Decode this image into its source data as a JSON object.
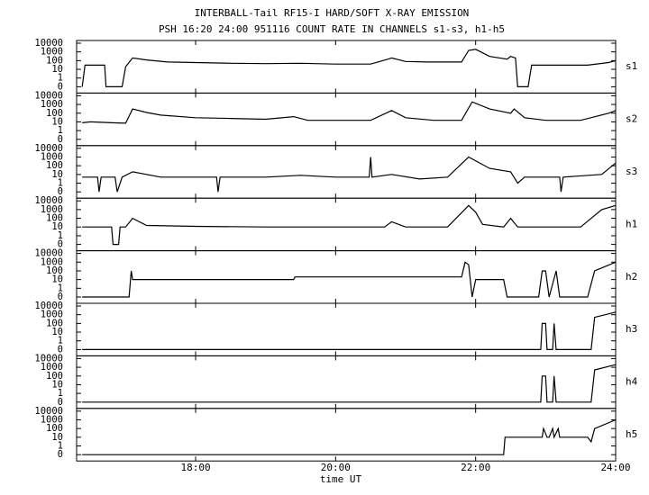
{
  "chart_data": [
    {
      "type": "line",
      "title": "INTERBALL-Tail RF15-I HARD/SOFT X-RAY EMISSION",
      "subtitle": "PSH 16:20 24:00 951116  COUNT RATE IN CHANNELS s1-s3, h1-h5",
      "label": "s1",
      "color": "#000000",
      "yscale": "symlog",
      "xlim": [
        16.3,
        24
      ],
      "ylim": [
        0,
        10000
      ],
      "yticks": [
        0,
        1,
        10,
        100,
        1000,
        10000
      ],
      "x": [
        16.38,
        16.42,
        16.7,
        16.72,
        16.95,
        17.0,
        17.1,
        17.3,
        17.6,
        18.0,
        18.5,
        19.0,
        19.5,
        20.0,
        20.5,
        20.75,
        20.8,
        21.0,
        21.3,
        21.8,
        21.9,
        22.0,
        22.2,
        22.45,
        22.5,
        22.57,
        22.6,
        22.75,
        22.8,
        23.2,
        23.6,
        23.9,
        24.0
      ],
      "values": [
        0,
        30,
        30,
        0,
        0,
        20,
        200,
        120,
        70,
        60,
        50,
        45,
        50,
        40,
        40,
        150,
        200,
        80,
        70,
        70,
        1500,
        2000,
        300,
        150,
        300,
        200,
        0,
        0,
        30,
        30,
        30,
        60,
        100
      ]
    },
    {
      "type": "line",
      "label": "s2",
      "color": "#000000",
      "yscale": "symlog",
      "xlim": [
        16.3,
        24
      ],
      "ylim": [
        0,
        10000
      ],
      "yticks": [
        0,
        1,
        10,
        100,
        1000,
        10000
      ],
      "x": [
        16.38,
        16.5,
        16.8,
        17.0,
        17.1,
        17.3,
        17.5,
        18.0,
        18.5,
        19.0,
        19.4,
        19.6,
        20.0,
        20.5,
        20.8,
        21.0,
        21.4,
        21.8,
        21.95,
        22.2,
        22.5,
        22.55,
        22.7,
        23.0,
        23.5,
        23.9,
        24.0
      ],
      "values": [
        8,
        10,
        8,
        7,
        300,
        120,
        60,
        30,
        25,
        20,
        40,
        15,
        15,
        15,
        200,
        30,
        15,
        15,
        2000,
        300,
        100,
        300,
        30,
        15,
        15,
        100,
        200
      ]
    },
    {
      "type": "line",
      "label": "s3",
      "color": "#000000",
      "yscale": "symlog",
      "xlim": [
        16.3,
        24
      ],
      "ylim": [
        0,
        10000
      ],
      "yticks": [
        0,
        1,
        10,
        100,
        1000,
        10000
      ],
      "x": [
        16.38,
        16.6,
        16.62,
        16.65,
        16.85,
        16.88,
        16.95,
        17.1,
        17.5,
        18.0,
        18.3,
        18.32,
        18.35,
        19.0,
        19.5,
        20.0,
        20.48,
        20.5,
        20.52,
        20.8,
        21.2,
        21.6,
        21.9,
        22.2,
        22.5,
        22.6,
        22.7,
        23.2,
        23.22,
        23.25,
        23.8,
        24.0
      ],
      "values": [
        5,
        5,
        0,
        5,
        5,
        0,
        5,
        20,
        5,
        5,
        5,
        0,
        5,
        5,
        8,
        5,
        5,
        1000,
        5,
        10,
        3,
        5,
        1000,
        50,
        20,
        1,
        5,
        5,
        0,
        5,
        10,
        200
      ]
    },
    {
      "type": "line",
      "label": "h1",
      "color": "#000000",
      "yscale": "symlog",
      "xlim": [
        16.3,
        24
      ],
      "ylim": [
        0,
        10000
      ],
      "yticks": [
        0,
        1,
        10,
        100,
        1000,
        10000
      ],
      "x": [
        16.38,
        16.8,
        16.82,
        16.9,
        16.92,
        17.0,
        17.1,
        17.3,
        18.0,
        19.0,
        20.0,
        20.7,
        20.8,
        21.0,
        21.6,
        21.9,
        22.0,
        22.1,
        22.4,
        22.5,
        22.6,
        23.0,
        23.5,
        23.8,
        24.0
      ],
      "values": [
        10,
        10,
        0,
        0,
        10,
        10,
        100,
        15,
        12,
        10,
        10,
        10,
        40,
        10,
        10,
        3000,
        500,
        20,
        10,
        100,
        10,
        10,
        10,
        1000,
        3000
      ]
    },
    {
      "type": "line",
      "label": "h2",
      "color": "#000000",
      "yscale": "symlog",
      "xlim": [
        16.3,
        24
      ],
      "ylim": [
        0,
        10000
      ],
      "yticks": [
        0,
        1,
        10,
        100,
        1000,
        10000
      ],
      "x": [
        16.38,
        17.05,
        17.08,
        17.1,
        17.12,
        19.4,
        19.42,
        21.8,
        21.85,
        21.9,
        21.95,
        22.0,
        22.4,
        22.45,
        22.9,
        22.95,
        23.0,
        23.05,
        23.15,
        23.2,
        23.6,
        23.7,
        24.0
      ],
      "values": [
        0,
        0,
        100,
        10,
        10,
        10,
        20,
        20,
        1000,
        500,
        0,
        10,
        10,
        0,
        0,
        100,
        100,
        0,
        100,
        0,
        0,
        100,
        1000
      ]
    },
    {
      "type": "line",
      "label": "h3",
      "color": "#000000",
      "yscale": "symlog",
      "xlim": [
        16.3,
        24
      ],
      "ylim": [
        0,
        10000
      ],
      "yticks": [
        0,
        1,
        10,
        100,
        1000,
        10000
      ],
      "x": [
        16.38,
        22.93,
        22.95,
        23.0,
        23.02,
        23.1,
        23.12,
        23.15,
        23.65,
        23.7,
        24.0
      ],
      "values": [
        0,
        0,
        100,
        100,
        0,
        0,
        100,
        0,
        0,
        500,
        2000
      ]
    },
    {
      "type": "line",
      "label": "h4",
      "color": "#000000",
      "yscale": "symlog",
      "xlim": [
        16.3,
        24
      ],
      "ylim": [
        0,
        10000
      ],
      "yticks": [
        0,
        1,
        10,
        100,
        1000,
        10000
      ],
      "x": [
        16.38,
        22.93,
        22.95,
        23.0,
        23.02,
        23.1,
        23.12,
        23.15,
        23.65,
        23.7,
        24.0
      ],
      "values": [
        0,
        0,
        100,
        100,
        0,
        0,
        100,
        0,
        0,
        500,
        2000
      ]
    },
    {
      "type": "line",
      "label": "h5",
      "color": "#000000",
      "yscale": "symlog",
      "xlim": [
        16.3,
        24
      ],
      "ylim": [
        0,
        10000
      ],
      "yticks": [
        0,
        1,
        10,
        100,
        1000,
        10000
      ],
      "xlabel": "time UT",
      "xticks": [
        {
          "value": 18,
          "label": "18:00"
        },
        {
          "value": 20,
          "label": "20:00"
        },
        {
          "value": 22,
          "label": "22:00"
        },
        {
          "value": 24,
          "label": "24:00"
        }
      ],
      "x": [
        16.38,
        22.4,
        22.42,
        22.95,
        22.97,
        23.02,
        23.05,
        23.1,
        23.12,
        23.18,
        23.2,
        23.6,
        23.65,
        23.7,
        24.0
      ],
      "values": [
        0,
        0,
        10,
        10,
        100,
        10,
        10,
        100,
        10,
        100,
        10,
        10,
        3,
        100,
        1000
      ]
    }
  ]
}
